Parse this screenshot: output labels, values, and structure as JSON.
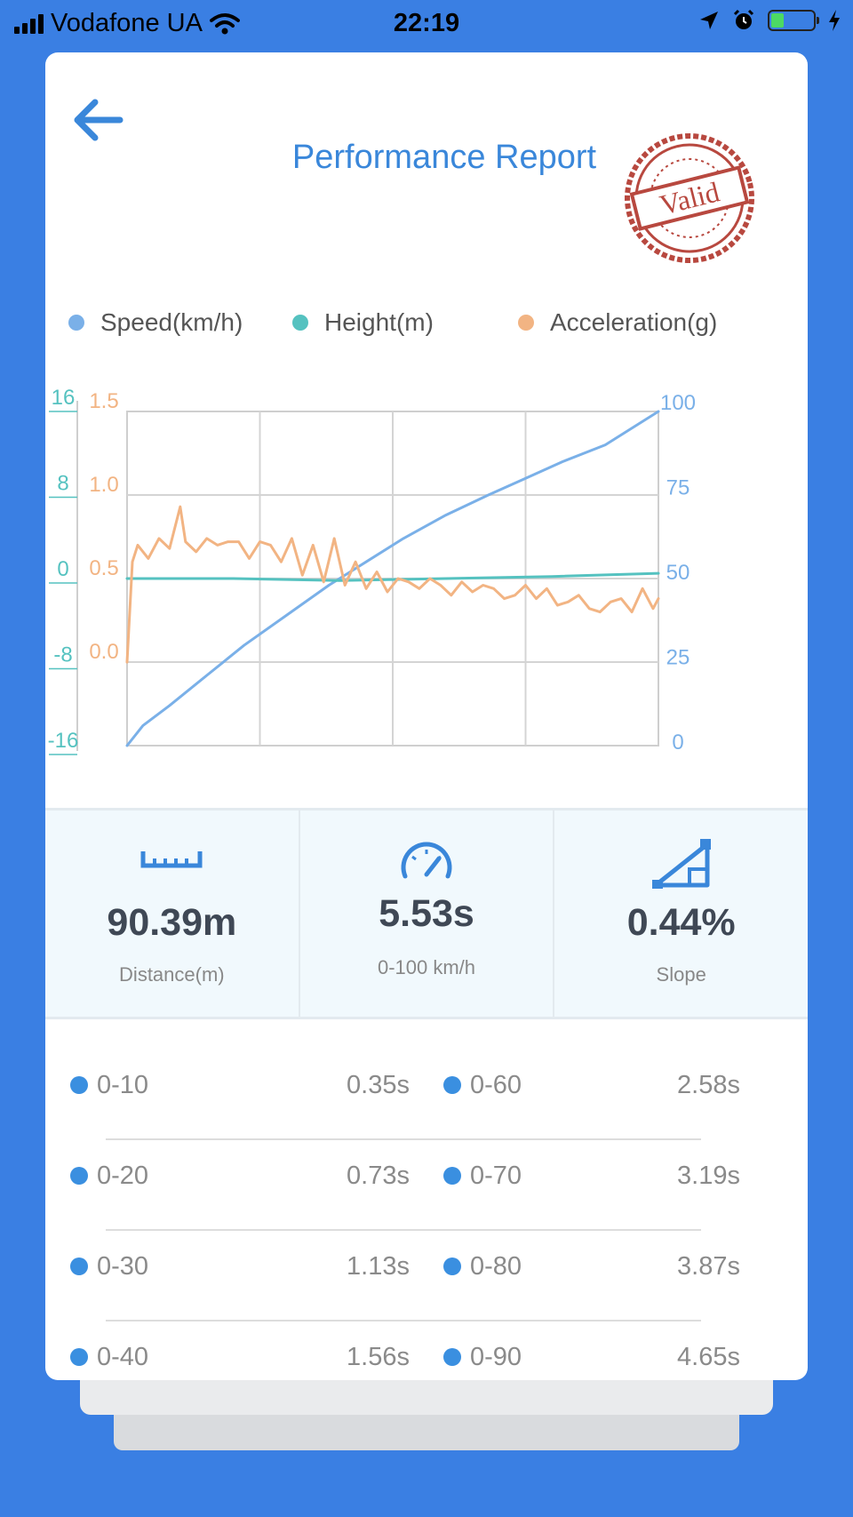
{
  "status_bar": {
    "carrier": "Vodafone UA",
    "time": "22:19",
    "battery_level": 0.3
  },
  "header": {
    "title": "Performance Report",
    "stamp_text": "Valid"
  },
  "legend": [
    {
      "label": "Speed(km/h)",
      "color": "#7ab0e8"
    },
    {
      "label": "Height(m)",
      "color": "#55c2c0"
    },
    {
      "label": "Acceleration(g)",
      "color": "#f2b483"
    }
  ],
  "chart_data": {
    "type": "line",
    "title": "",
    "grid": true,
    "x_divisions": 4,
    "axes": {
      "height": {
        "ticks": [
          "16",
          "8",
          "0",
          "-8",
          "-16"
        ],
        "range": [
          -16,
          16
        ],
        "color": "#55c2c0"
      },
      "acceleration": {
        "ticks": [
          "1.5",
          "1.0",
          "0.5",
          "0.0"
        ],
        "range": [
          -0.5,
          1.5
        ],
        "color": "#f2b483"
      },
      "speed": {
        "ticks": [
          "100",
          "75",
          "50",
          "25",
          "0"
        ],
        "range": [
          0,
          100
        ],
        "color": "#7ab0e8"
      }
    },
    "series": [
      {
        "name": "Speed(km/h)",
        "axis": "speed",
        "x": [
          0,
          0.03,
          0.08,
          0.15,
          0.22,
          0.3,
          0.38,
          0.45,
          0.52,
          0.6,
          0.68,
          0.75,
          0.82,
          0.9,
          1.0
        ],
        "y": [
          0,
          6,
          12,
          21,
          30,
          39,
          48,
          55,
          62,
          69,
          75,
          80,
          85,
          90,
          100
        ]
      },
      {
        "name": "Height(m)",
        "axis": "height",
        "x": [
          0,
          0.2,
          0.4,
          0.6,
          0.8,
          1.0
        ],
        "y": [
          0,
          0,
          -0.2,
          0,
          0.2,
          0.5
        ]
      },
      {
        "name": "Acceleration(g)",
        "axis": "acceleration",
        "x": [
          0,
          0.01,
          0.02,
          0.04,
          0.06,
          0.08,
          0.1,
          0.11,
          0.13,
          0.15,
          0.17,
          0.19,
          0.21,
          0.23,
          0.25,
          0.27,
          0.29,
          0.31,
          0.33,
          0.35,
          0.37,
          0.39,
          0.41,
          0.43,
          0.45,
          0.47,
          0.49,
          0.51,
          0.53,
          0.55,
          0.57,
          0.59,
          0.61,
          0.63,
          0.65,
          0.67,
          0.69,
          0.71,
          0.73,
          0.75,
          0.77,
          0.79,
          0.81,
          0.83,
          0.85,
          0.87,
          0.89,
          0.91,
          0.93,
          0.95,
          0.97,
          0.99,
          1.0
        ],
        "y": [
          0.0,
          0.6,
          0.7,
          0.62,
          0.74,
          0.68,
          0.93,
          0.72,
          0.66,
          0.74,
          0.7,
          0.72,
          0.72,
          0.62,
          0.72,
          0.7,
          0.6,
          0.74,
          0.52,
          0.7,
          0.48,
          0.74,
          0.46,
          0.6,
          0.44,
          0.54,
          0.42,
          0.5,
          0.48,
          0.44,
          0.5,
          0.46,
          0.4,
          0.48,
          0.42,
          0.46,
          0.44,
          0.38,
          0.4,
          0.46,
          0.38,
          0.44,
          0.34,
          0.36,
          0.4,
          0.32,
          0.3,
          0.36,
          0.38,
          0.3,
          0.44,
          0.32,
          0.38
        ]
      }
    ]
  },
  "stats": [
    {
      "icon": "ruler-icon",
      "value": "90.39m",
      "label": "Distance(m)"
    },
    {
      "icon": "speedometer-icon",
      "value": "5.53s",
      "label": "0-100 km/h"
    },
    {
      "icon": "slope-icon",
      "value": "0.44%",
      "label": "Slope"
    }
  ],
  "splits": [
    [
      {
        "range": "0-10",
        "time": "0.35s"
      },
      {
        "range": "0-60",
        "time": "2.58s"
      }
    ],
    [
      {
        "range": "0-20",
        "time": "0.73s"
      },
      {
        "range": "0-70",
        "time": "3.19s"
      }
    ],
    [
      {
        "range": "0-30",
        "time": "1.13s"
      },
      {
        "range": "0-80",
        "time": "3.87s"
      }
    ],
    [
      {
        "range": "0-40",
        "time": "1.56s"
      },
      {
        "range": "0-90",
        "time": "4.65s"
      }
    ]
  ]
}
